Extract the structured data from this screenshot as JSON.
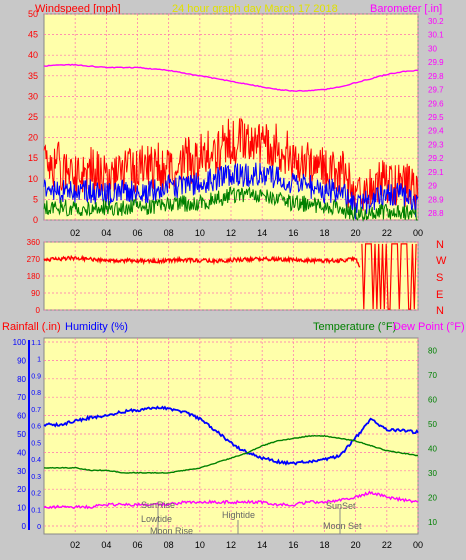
{
  "header": {
    "left_label": "Windspeed [mph]",
    "title": "24 hour graph day   March 17 2018",
    "right_label": "Barometer [.in]"
  },
  "panel2": {
    "dir_letters": [
      "N",
      "W",
      "S",
      "E",
      "N"
    ]
  },
  "panel3": {
    "label_rainfall": "Rainfall (.in)",
    "label_humidity": "Humidity (%)",
    "label_temperature": "Temperature (°F)",
    "label_dewpoint": "Dew Point (°F)"
  },
  "annotations": {
    "sunrise": "SunRise",
    "lowtide": "Lowtide",
    "moonrise": "Moon Rise",
    "hightide": "Hightide",
    "sunset": "SunSet",
    "moonset": "Moon Set"
  },
  "colors": {
    "plot_bg": "#ffffaa",
    "page_bg": "#c8c8c8",
    "grid": "#ff6fb0",
    "gust": "#ff0000",
    "speed": "#0000ff",
    "minspeed": "#008000",
    "barometer": "#ff00ff",
    "direction": "#ff0000",
    "humidity": "#0000ff",
    "temperature": "#008000",
    "dewpoint": "#ff00ff",
    "rain_axis": "#0000ff",
    "title": "#e0e000"
  },
  "chart_data": [
    {
      "type": "line",
      "name": "wind-barometer",
      "x_ticks": [
        "02",
        "04",
        "06",
        "08",
        "10",
        "12",
        "14",
        "16",
        "18",
        "20",
        "22",
        "00"
      ],
      "y_left_ticks": [
        "0",
        "5",
        "10",
        "15",
        "20",
        "25",
        "30",
        "35",
        "40",
        "45",
        "50"
      ],
      "y_right_ticks": [
        "28.8",
        "28.9",
        "29",
        "29.1",
        "29.2",
        "29.3",
        "29.4",
        "29.5",
        "29.6",
        "29.7",
        "29.8",
        "29.9",
        "30",
        "30.1",
        "30.2"
      ],
      "xlim": [
        0,
        24
      ],
      "ylim_left": [
        0,
        50
      ],
      "ylim_right": [
        28.75,
        30.25
      ],
      "series": [
        {
          "key": "gust",
          "axis": "left",
          "x": [
            0,
            1,
            2,
            3,
            4,
            5,
            6,
            7,
            8,
            9,
            10,
            11,
            12,
            13,
            14,
            15,
            16,
            17,
            18,
            19,
            20,
            21,
            22,
            23,
            24
          ],
          "y": [
            14,
            13,
            12,
            12,
            11,
            12,
            12,
            13,
            13,
            14,
            15,
            17,
            19,
            19,
            19,
            18,
            15,
            14,
            13,
            12,
            6,
            8,
            9,
            9,
            5
          ]
        },
        {
          "key": "speed",
          "axis": "left",
          "x": [
            0,
            1,
            2,
            3,
            4,
            5,
            6,
            7,
            8,
            9,
            10,
            11,
            12,
            13,
            14,
            15,
            16,
            17,
            18,
            19,
            20,
            21,
            22,
            23,
            24
          ],
          "y": [
            8,
            7,
            7,
            7,
            6,
            7,
            7,
            7,
            8,
            8,
            9,
            10,
            11,
            11,
            11,
            10,
            9,
            8,
            7,
            7,
            3,
            5,
            6,
            6,
            3
          ]
        },
        {
          "key": "minspeed",
          "axis": "left",
          "x": [
            0,
            1,
            2,
            3,
            4,
            5,
            6,
            7,
            8,
            9,
            10,
            11,
            12,
            13,
            14,
            15,
            16,
            17,
            18,
            19,
            20,
            21,
            22,
            23,
            24
          ],
          "y": [
            3,
            3,
            3,
            3,
            3,
            3,
            3,
            3,
            4,
            4,
            4,
            5,
            6,
            6,
            6,
            5,
            4,
            4,
            3,
            3,
            1,
            2,
            2,
            2,
            1
          ]
        },
        {
          "key": "barometer",
          "axis": "right",
          "x": [
            0,
            1,
            2,
            3,
            4,
            5,
            6,
            7,
            8,
            9,
            10,
            11,
            12,
            13,
            14,
            15,
            16,
            17,
            18,
            19,
            20,
            21,
            22,
            23,
            24
          ],
          "y": [
            29.87,
            29.88,
            29.88,
            29.87,
            29.86,
            29.86,
            29.86,
            29.85,
            29.84,
            29.82,
            29.8,
            29.78,
            29.76,
            29.74,
            29.72,
            29.7,
            29.69,
            29.69,
            29.7,
            29.72,
            29.75,
            29.78,
            29.81,
            29.83,
            29.84
          ]
        }
      ]
    },
    {
      "type": "scatter",
      "name": "wind-direction",
      "x_ticks": [
        "02",
        "04",
        "06",
        "08",
        "10",
        "12",
        "14",
        "16",
        "18",
        "20",
        "22",
        "00"
      ],
      "y_ticks": [
        "0",
        "90",
        "180",
        "270",
        "360"
      ],
      "y_tick_labels": [
        "0",
        "90",
        "180",
        "270",
        "360"
      ],
      "xlim": [
        0,
        24
      ],
      "ylim": [
        0,
        360
      ],
      "series": [
        {
          "key": "direction",
          "x": [
            0,
            1,
            2,
            3,
            4,
            5,
            6,
            7,
            8,
            9,
            10,
            11,
            12,
            13,
            14,
            15,
            16,
            17,
            18,
            19,
            20,
            20.5,
            21,
            22,
            23,
            24
          ],
          "y": [
            265,
            270,
            275,
            268,
            262,
            262,
            260,
            258,
            262,
            265,
            262,
            260,
            265,
            268,
            270,
            268,
            265,
            262,
            260,
            262,
            270,
            180,
            90,
            0,
            10,
            0
          ]
        }
      ]
    },
    {
      "type": "line",
      "name": "humidity-temperature",
      "x_ticks": [
        "02",
        "04",
        "06",
        "08",
        "10",
        "12",
        "14",
        "16",
        "18",
        "20",
        "22",
        "00"
      ],
      "y_rain_ticks": [
        "0",
        "0.1",
        "0.2",
        "0.3",
        "0.4",
        "0.5",
        "0.6",
        "0.7",
        "0.8",
        "0.9",
        "1",
        "1.1"
      ],
      "y_humidity_ticks": [
        "0",
        "10",
        "20",
        "30",
        "40",
        "50",
        "60",
        "70",
        "80",
        "90",
        "100"
      ],
      "y_temp_ticks": [
        "10",
        "20",
        "30",
        "40",
        "50",
        "60",
        "70",
        "80"
      ],
      "xlim": [
        0,
        24
      ],
      "ylim_humidity": [
        0,
        100
      ],
      "ylim_temp": [
        5,
        85
      ],
      "series": [
        {
          "key": "humidity",
          "axis": "humidity",
          "x": [
            0,
            1,
            2,
            3,
            4,
            5,
            6,
            7,
            8,
            9,
            10,
            11,
            12,
            13,
            14,
            15,
            16,
            17,
            18,
            19,
            20,
            20.5,
            21,
            21.5,
            22,
            23,
            24
          ],
          "y": [
            55,
            55,
            57,
            59,
            60,
            62,
            63,
            64,
            64,
            62,
            58,
            52,
            45,
            40,
            37,
            35,
            34,
            35,
            36,
            38,
            48,
            53,
            58,
            55,
            52,
            52,
            51
          ]
        },
        {
          "key": "temperature",
          "axis": "temp",
          "x": [
            0,
            1,
            2,
            3,
            4,
            5,
            6,
            7,
            8,
            9,
            10,
            11,
            12,
            13,
            14,
            15,
            16,
            17,
            18,
            19,
            20,
            21,
            22,
            23,
            24
          ],
          "y": [
            32,
            32,
            32,
            31,
            31,
            30,
            30,
            30,
            30,
            31,
            32,
            34,
            36,
            38,
            41,
            43,
            44,
            45,
            45,
            44,
            43,
            41,
            39,
            38,
            37
          ]
        },
        {
          "key": "dewpoint",
          "axis": "temp",
          "x": [
            0,
            1,
            2,
            3,
            4,
            5,
            6,
            7,
            8,
            9,
            10,
            11,
            12,
            13,
            14,
            15,
            16,
            17,
            18,
            19,
            20,
            21,
            22,
            23,
            24
          ],
          "y": [
            16,
            16,
            16,
            16,
            17,
            17,
            17,
            17,
            17,
            18,
            18,
            18,
            18,
            18,
            18,
            17,
            17,
            18,
            18,
            19,
            20,
            22,
            20,
            19,
            18
          ]
        }
      ]
    }
  ]
}
